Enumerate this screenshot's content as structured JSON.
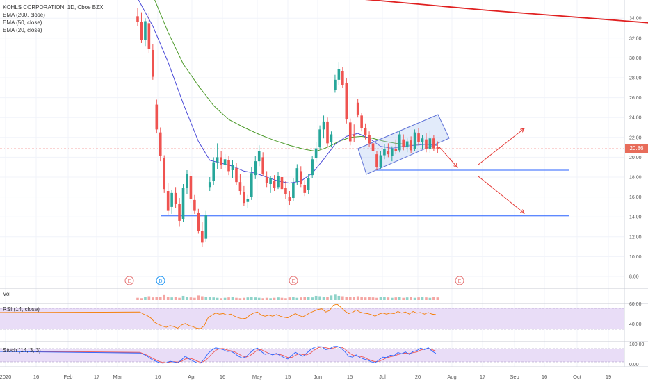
{
  "legend": {
    "symbol": "KOHLS CORPORATION, 1D, Cboe BZX",
    "ema200": "EMA (200, close)",
    "ema50": "EMA (50, close)",
    "ema20": "EMA (20, close)"
  },
  "current_price": "20.86",
  "panes": {
    "volume": "Vol",
    "rsi": "RSI (14, close)",
    "stoch": "Stoch (14, 3, 3)"
  },
  "events": [
    "E",
    "D",
    "E",
    "E"
  ],
  "colors": {
    "up": "#26a69a",
    "down": "#ef5350",
    "ema200": "#e02020",
    "ema50": "#4c9a2a",
    "ema20": "#4b4bd8",
    "support": "#2962ff",
    "rsi": "#f57c00",
    "band": "#e9ddf7",
    "stoch_k": "#2962ff",
    "stoch_d": "#ef5350",
    "arrow": "#e53935"
  },
  "chart_data": {
    "type": "candlestick",
    "symbol": "KOHLS CORPORATION",
    "interval": "1D",
    "price_axis_ticks": [
      "34.00",
      "32.00",
      "30.00",
      "28.00",
      "26.00",
      "24.00",
      "22.00",
      "20.00",
      "18.00",
      "16.00",
      "14.00",
      "12.00",
      "10.00",
      "8.00"
    ],
    "price_ylim": [
      6.8,
      36
    ],
    "time_axis_labels": [
      "2020",
      "16",
      "Feb",
      "17",
      "Mar",
      "16",
      "Apr",
      "16",
      "May",
      "15",
      "Jun",
      "15",
      "Jul",
      "20",
      "Aug",
      "17",
      "Sep",
      "16",
      "Oct",
      "19"
    ],
    "rsi_axis_ticks": [
      "60.00",
      "40.00"
    ],
    "stoch_axis_ticks": [
      "100.00",
      "0.00"
    ],
    "support_levels": [
      18.7,
      14.1
    ],
    "current_price": 20.86,
    "candles": [
      {
        "o": 34.2,
        "h": 35.0,
        "l": 33.2,
        "c": 33.6
      },
      {
        "o": 33.6,
        "h": 34.6,
        "l": 31.5,
        "c": 31.8
      },
      {
        "o": 31.8,
        "h": 34.0,
        "l": 31.2,
        "c": 33.7
      },
      {
        "o": 33.5,
        "h": 34.5,
        "l": 30.5,
        "c": 30.9
      },
      {
        "o": 30.8,
        "h": 31.4,
        "l": 27.8,
        "c": 28.1
      },
      {
        "o": 25.3,
        "h": 25.8,
        "l": 22.4,
        "c": 22.8
      },
      {
        "o": 22.5,
        "h": 23.0,
        "l": 19.6,
        "c": 20.1
      },
      {
        "o": 19.9,
        "h": 20.2,
        "l": 16.4,
        "c": 16.8
      },
      {
        "o": 16.6,
        "h": 17.4,
        "l": 14.2,
        "c": 14.6
      },
      {
        "o": 15.0,
        "h": 16.7,
        "l": 14.3,
        "c": 16.4
      },
      {
        "o": 16.4,
        "h": 17.0,
        "l": 14.9,
        "c": 15.3
      },
      {
        "o": 15.3,
        "h": 15.9,
        "l": 13.0,
        "c": 13.6
      },
      {
        "o": 13.8,
        "h": 17.3,
        "l": 13.5,
        "c": 16.9
      },
      {
        "o": 16.9,
        "h": 18.7,
        "l": 16.3,
        "c": 18.3
      },
      {
        "o": 18.1,
        "h": 18.6,
        "l": 15.4,
        "c": 15.8
      },
      {
        "o": 15.7,
        "h": 16.2,
        "l": 14.3,
        "c": 14.6
      },
      {
        "o": 14.4,
        "h": 14.8,
        "l": 12.3,
        "c": 12.6
      },
      {
        "o": 12.6,
        "h": 13.5,
        "l": 11.0,
        "c": 11.4
      },
      {
        "o": 11.8,
        "h": 14.6,
        "l": 11.5,
        "c": 14.2
      },
      {
        "o": 17.0,
        "h": 18.0,
        "l": 16.6,
        "c": 17.5
      },
      {
        "o": 17.6,
        "h": 20.0,
        "l": 17.2,
        "c": 19.5
      },
      {
        "o": 19.5,
        "h": 21.4,
        "l": 18.8,
        "c": 20.0
      },
      {
        "o": 20.0,
        "h": 20.6,
        "l": 18.8,
        "c": 19.2
      },
      {
        "o": 19.2,
        "h": 20.3,
        "l": 18.9,
        "c": 19.8
      },
      {
        "o": 19.7,
        "h": 20.1,
        "l": 18.2,
        "c": 18.6
      },
      {
        "o": 18.7,
        "h": 19.7,
        "l": 17.9,
        "c": 19.2
      },
      {
        "o": 18.9,
        "h": 19.4,
        "l": 17.2,
        "c": 17.5
      },
      {
        "o": 17.5,
        "h": 18.3,
        "l": 16.2,
        "c": 16.6
      },
      {
        "o": 16.5,
        "h": 17.1,
        "l": 15.1,
        "c": 15.4
      },
      {
        "o": 15.5,
        "h": 16.2,
        "l": 14.9,
        "c": 15.8
      },
      {
        "o": 16.0,
        "h": 19.0,
        "l": 15.7,
        "c": 18.4
      },
      {
        "o": 18.2,
        "h": 20.1,
        "l": 17.8,
        "c": 19.6
      },
      {
        "o": 19.6,
        "h": 21.2,
        "l": 19.1,
        "c": 20.6
      },
      {
        "o": 20.0,
        "h": 20.5,
        "l": 18.1,
        "c": 18.3
      },
      {
        "o": 18.0,
        "h": 18.6,
        "l": 17.0,
        "c": 17.4
      },
      {
        "o": 17.3,
        "h": 18.1,
        "l": 16.4,
        "c": 17.9
      },
      {
        "o": 17.6,
        "h": 18.2,
        "l": 16.6,
        "c": 16.9
      },
      {
        "o": 17.0,
        "h": 18.5,
        "l": 16.8,
        "c": 18.1
      },
      {
        "o": 18.0,
        "h": 18.6,
        "l": 16.4,
        "c": 16.8
      },
      {
        "o": 16.9,
        "h": 17.6,
        "l": 15.8,
        "c": 16.3
      },
      {
        "o": 16.0,
        "h": 16.6,
        "l": 15.2,
        "c": 15.6
      },
      {
        "o": 15.9,
        "h": 17.9,
        "l": 15.6,
        "c": 17.4
      },
      {
        "o": 17.5,
        "h": 19.3,
        "l": 17.2,
        "c": 18.9
      },
      {
        "o": 18.6,
        "h": 19.1,
        "l": 17.0,
        "c": 17.3
      },
      {
        "o": 17.2,
        "h": 17.7,
        "l": 16.1,
        "c": 16.4
      },
      {
        "o": 16.7,
        "h": 18.3,
        "l": 16.3,
        "c": 17.9
      },
      {
        "o": 18.2,
        "h": 20.1,
        "l": 17.9,
        "c": 19.8
      },
      {
        "o": 19.9,
        "h": 21.5,
        "l": 19.5,
        "c": 20.9
      },
      {
        "o": 21.0,
        "h": 23.2,
        "l": 20.8,
        "c": 22.8
      },
      {
        "o": 22.8,
        "h": 24.2,
        "l": 21.9,
        "c": 23.6
      },
      {
        "o": 23.6,
        "h": 24.0,
        "l": 21.0,
        "c": 21.4
      },
      {
        "o": 21.5,
        "h": 22.6,
        "l": 21.0,
        "c": 22.3
      },
      {
        "o": 26.8,
        "h": 28.3,
        "l": 26.5,
        "c": 27.8
      },
      {
        "o": 27.8,
        "h": 29.6,
        "l": 27.3,
        "c": 28.9
      },
      {
        "o": 28.7,
        "h": 29.1,
        "l": 27.0,
        "c": 27.3
      },
      {
        "o": 27.5,
        "h": 28.0,
        "l": 23.4,
        "c": 23.8
      },
      {
        "o": 23.5,
        "h": 23.9,
        "l": 21.2,
        "c": 21.6
      },
      {
        "o": 22.3,
        "h": 23.3,
        "l": 21.5,
        "c": 22.1
      },
      {
        "o": 25.5,
        "h": 25.9,
        "l": 24.0,
        "c": 24.3
      },
      {
        "o": 24.2,
        "h": 24.5,
        "l": 22.6,
        "c": 22.9
      },
      {
        "o": 22.9,
        "h": 23.4,
        "l": 21.8,
        "c": 22.2
      },
      {
        "o": 22.2,
        "h": 22.6,
        "l": 21.0,
        "c": 21.4
      },
      {
        "o": 21.4,
        "h": 22.0,
        "l": 20.1,
        "c": 20.6
      },
      {
        "o": 20.3,
        "h": 20.6,
        "l": 18.7,
        "c": 19.0
      },
      {
        "o": 19.0,
        "h": 20.6,
        "l": 18.8,
        "c": 20.2
      },
      {
        "o": 20.2,
        "h": 21.3,
        "l": 19.8,
        "c": 20.8
      },
      {
        "o": 20.6,
        "h": 21.4,
        "l": 20.0,
        "c": 20.3
      },
      {
        "o": 20.1,
        "h": 21.1,
        "l": 19.6,
        "c": 20.8
      },
      {
        "o": 20.8,
        "h": 21.8,
        "l": 20.3,
        "c": 20.6
      },
      {
        "o": 20.7,
        "h": 22.7,
        "l": 20.5,
        "c": 22.3
      },
      {
        "o": 21.8,
        "h": 22.3,
        "l": 20.7,
        "c": 21.0
      },
      {
        "o": 21.0,
        "h": 21.9,
        "l": 20.5,
        "c": 21.6
      },
      {
        "o": 21.7,
        "h": 22.1,
        "l": 20.4,
        "c": 20.7
      },
      {
        "o": 20.8,
        "h": 22.8,
        "l": 20.6,
        "c": 22.5
      },
      {
        "o": 22.4,
        "h": 22.9,
        "l": 21.2,
        "c": 21.5
      },
      {
        "o": 21.5,
        "h": 22.2,
        "l": 20.8,
        "c": 21.9
      },
      {
        "o": 21.8,
        "h": 22.4,
        "l": 20.5,
        "c": 20.8
      },
      {
        "o": 20.8,
        "h": 22.7,
        "l": 20.4,
        "c": 21.9
      },
      {
        "o": 21.9,
        "h": 22.2,
        "l": 20.6,
        "c": 20.9
      },
      {
        "o": 21.0,
        "h": 21.6,
        "l": 20.4,
        "c": 20.86
      }
    ],
    "ema200": [
      [
        0,
        36.3
      ],
      [
        20,
        34.8
      ],
      [
        40,
        33.5
      ],
      [
        60,
        32.4
      ],
      [
        79,
        31.5
      ]
    ],
    "ema50": [
      [
        0,
        40.0
      ],
      [
        4,
        36.3
      ],
      [
        8,
        32.6
      ],
      [
        12,
        29.4
      ],
      [
        16,
        27.2
      ],
      [
        20,
        25.2
      ],
      [
        24,
        23.8
      ],
      [
        28,
        23.0
      ],
      [
        32,
        22.3
      ],
      [
        36,
        21.7
      ],
      [
        40,
        21.2
      ],
      [
        44,
        20.8
      ],
      [
        47,
        20.6
      ],
      [
        50,
        21.0
      ],
      [
        53,
        21.6
      ],
      [
        56,
        22.0
      ],
      [
        59,
        22.1
      ],
      [
        62,
        21.9
      ],
      [
        65,
        21.6
      ],
      [
        68,
        21.4
      ],
      [
        71,
        21.3
      ],
      [
        74,
        21.3
      ],
      [
        77,
        21.3
      ],
      [
        79,
        21.3
      ]
    ],
    "ema20": [
      [
        0,
        36.0
      ],
      [
        4,
        33.2
      ],
      [
        8,
        29.6
      ],
      [
        12,
        25.4
      ],
      [
        16,
        21.6
      ],
      [
        19,
        19.7
      ],
      [
        22,
        19.4
      ],
      [
        25,
        19.1
      ],
      [
        28,
        18.6
      ],
      [
        31,
        18.4
      ],
      [
        34,
        18.0
      ],
      [
        37,
        17.6
      ],
      [
        40,
        17.4
      ],
      [
        43,
        17.6
      ],
      [
        46,
        18.4
      ],
      [
        49,
        19.8
      ],
      [
        52,
        21.3
      ],
      [
        55,
        22.1
      ],
      [
        58,
        22.4
      ],
      [
        61,
        21.9
      ],
      [
        64,
        21.1
      ],
      [
        67,
        20.9
      ],
      [
        70,
        21.1
      ],
      [
        73,
        21.2
      ],
      [
        76,
        21.3
      ],
      [
        79,
        21.2
      ]
    ],
    "volume": [
      6,
      5,
      9,
      10,
      7,
      9,
      8,
      13,
      9,
      7,
      8,
      6,
      11,
      9,
      7,
      6,
      12,
      10,
      8,
      9,
      7,
      6,
      5,
      6,
      7,
      8,
      6,
      5,
      6,
      7,
      8,
      7,
      6,
      5,
      6,
      5,
      6,
      7,
      6,
      5,
      7,
      8,
      6,
      7,
      9,
      8,
      7,
      11,
      10,
      9,
      8,
      12,
      14,
      11,
      10,
      9,
      8,
      9,
      10,
      8,
      7,
      8,
      7,
      6,
      9,
      8,
      7,
      6,
      7,
      8,
      6,
      7,
      8,
      6,
      7,
      9,
      7,
      6,
      8,
      7
    ],
    "rsi": [
      52,
      53,
      49,
      46,
      41,
      33,
      29,
      26,
      24,
      27,
      25,
      22,
      28,
      31,
      27,
      25,
      22,
      21,
      27,
      42,
      47,
      51,
      49,
      50,
      47,
      49,
      45,
      42,
      40,
      41,
      47,
      51,
      53,
      47,
      45,
      47,
      45,
      48,
      45,
      43,
      42,
      46,
      50,
      46,
      44,
      48,
      52,
      55,
      58,
      59,
      53,
      56,
      66,
      68,
      62,
      55,
      50,
      52,
      57,
      53,
      51,
      50,
      48,
      45,
      49,
      51,
      49,
      51,
      50,
      54,
      51,
      53,
      49,
      54,
      51,
      52,
      49,
      52,
      49,
      48
    ],
    "stoch_k": [
      70,
      62,
      55,
      45,
      30,
      20,
      12,
      8,
      10,
      18,
      14,
      10,
      25,
      45,
      30,
      20,
      10,
      8,
      30,
      60,
      78,
      90,
      85,
      80,
      70,
      72,
      60,
      45,
      35,
      42,
      62,
      80,
      88,
      70,
      55,
      60,
      52,
      60,
      48,
      38,
      30,
      48,
      66,
      55,
      45,
      62,
      80,
      92,
      96,
      95,
      80,
      84,
      96,
      98,
      88,
      70,
      45,
      40,
      52,
      38,
      30,
      25,
      15,
      10,
      25,
      40,
      38,
      50,
      48,
      65,
      58,
      68,
      55,
      70,
      75,
      88,
      80,
      90,
      72,
      60
    ],
    "stoch_d": [
      72,
      66,
      58,
      50,
      38,
      28,
      18,
      12,
      10,
      14,
      16,
      14,
      18,
      30,
      34,
      30,
      20,
      12,
      18,
      35,
      58,
      76,
      85,
      86,
      78,
      74,
      68,
      58,
      46,
      40,
      48,
      62,
      78,
      80,
      70,
      60,
      56,
      56,
      54,
      48,
      38,
      38,
      50,
      58,
      54,
      52,
      62,
      78,
      90,
      94,
      90,
      86,
      88,
      94,
      94,
      84,
      66,
      52,
      46,
      44,
      40,
      30,
      22,
      16,
      18,
      26,
      36,
      42,
      46,
      54,
      58,
      62,
      60,
      64,
      68,
      78,
      82,
      86,
      80,
      72
    ]
  }
}
